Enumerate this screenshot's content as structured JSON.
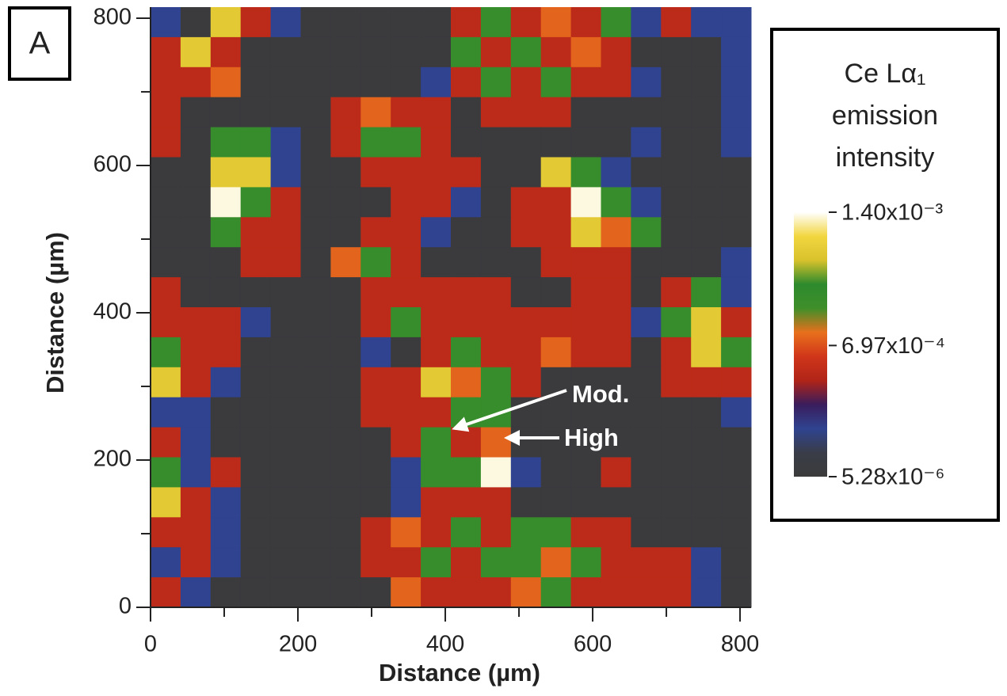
{
  "chart_data": {
    "type": "heatmap",
    "title": "A",
    "xlabel": "Distance (µm)",
    "ylabel": "Distance (µm)",
    "xlim": [
      0,
      815
    ],
    "ylim": [
      0,
      815
    ],
    "xticks": [
      0,
      200,
      400,
      600,
      800
    ],
    "yticks": [
      0,
      200,
      400,
      600,
      800
    ],
    "xminorticks": [
      100,
      300,
      500,
      700
    ],
    "yminorticks": [
      100,
      300,
      500,
      700
    ],
    "colorbar_title": [
      "Ce Lα₁",
      "emission",
      "intensity"
    ],
    "zlim": [
      5.28e-06,
      0.0014
    ],
    "zticks": [
      {
        "value": 0.0014,
        "label": "1.40x10⁻³"
      },
      {
        "value": 0.000697,
        "label": "6.97x10⁻⁴"
      },
      {
        "value": 5.28e-06,
        "label": "5.28x10⁻⁶"
      }
    ],
    "colors": [
      "#3b3b3b",
      "#3a3d48",
      "#2f4390",
      "#3a1d5c",
      "#b02418",
      "#d0361a",
      "#e8701c",
      "#3f8f2a",
      "#2d8a2d",
      "#d8c22c",
      "#f2d640",
      "#ffffff"
    ],
    "annotations": [
      "Mod.",
      "High"
    ],
    "z": [
      [
        0.00026,
        3e-05,
        0.0012,
        0.00056,
        0.00026,
        3e-05,
        3e-05,
        3e-05,
        3e-05,
        3e-05,
        0.00056,
        0.00095,
        0.00056,
        0.00074,
        0.00056,
        0.00095,
        0.00026,
        0.00056,
        0.00026,
        0.00026
      ],
      [
        0.00056,
        0.0012,
        0.00056,
        3e-05,
        3e-05,
        3e-05,
        3e-05,
        3e-05,
        3e-05,
        3e-05,
        0.00095,
        0.00056,
        0.00095,
        0.00056,
        0.00074,
        0.00056,
        3e-05,
        3e-05,
        3e-05,
        0.00026
      ],
      [
        0.00056,
        0.00056,
        0.00074,
        3e-05,
        3e-05,
        3e-05,
        3e-05,
        3e-05,
        3e-05,
        0.00026,
        0.00056,
        0.00095,
        0.00056,
        0.00095,
        0.00056,
        0.00056,
        0.00026,
        3e-05,
        3e-05,
        0.00026
      ],
      [
        0.00056,
        3e-05,
        3e-05,
        3e-05,
        3e-05,
        3e-05,
        0.00056,
        0.00074,
        0.00056,
        0.00056,
        3e-05,
        0.00056,
        0.00056,
        0.00056,
        3e-05,
        3e-05,
        3e-05,
        3e-05,
        3e-05,
        0.00026
      ],
      [
        0.00056,
        3e-05,
        0.00095,
        0.00095,
        0.00026,
        3e-05,
        0.00056,
        0.00095,
        0.00095,
        0.00056,
        3e-05,
        3e-05,
        3e-05,
        3e-05,
        3e-05,
        3e-05,
        0.00026,
        3e-05,
        3e-05,
        0.00026
      ],
      [
        3e-05,
        3e-05,
        0.0012,
        0.0012,
        0.00026,
        3e-05,
        3e-05,
        0.00056,
        0.00056,
        0.00056,
        0.00056,
        3e-05,
        3e-05,
        0.0012,
        0.00095,
        0.00026,
        3e-05,
        3e-05,
        3e-05,
        3e-05
      ],
      [
        3e-05,
        3e-05,
        0.00138,
        0.00095,
        0.00056,
        3e-05,
        3e-05,
        3e-05,
        0.00056,
        0.00056,
        0.00026,
        3e-05,
        0.00056,
        0.00056,
        0.00138,
        0.00095,
        0.00026,
        3e-05,
        3e-05,
        3e-05
      ],
      [
        3e-05,
        3e-05,
        0.00095,
        0.00056,
        0.00056,
        3e-05,
        3e-05,
        0.00056,
        0.00056,
        0.00026,
        3e-05,
        3e-05,
        0.00056,
        0.00056,
        0.0012,
        0.00074,
        0.00095,
        3e-05,
        3e-05,
        3e-05
      ],
      [
        3e-05,
        3e-05,
        3e-05,
        0.00056,
        0.00056,
        3e-05,
        0.00074,
        0.00095,
        0.00056,
        3e-05,
        3e-05,
        3e-05,
        3e-05,
        0.00056,
        0.00056,
        0.00056,
        3e-05,
        3e-05,
        3e-05,
        0.00026
      ],
      [
        0.00056,
        3e-05,
        3e-05,
        3e-05,
        3e-05,
        3e-05,
        3e-05,
        0.00056,
        0.00056,
        0.00056,
        0.00056,
        0.00056,
        3e-05,
        3e-05,
        0.00056,
        0.00056,
        3e-05,
        0.00056,
        0.00095,
        0.00026
      ],
      [
        0.00056,
        0.00056,
        0.00056,
        0.00026,
        3e-05,
        3e-05,
        3e-05,
        0.00056,
        0.00095,
        0.00056,
        0.00056,
        0.00056,
        0.00056,
        0.00056,
        0.00056,
        0.00056,
        0.00026,
        0.00095,
        0.0012,
        0.00056
      ],
      [
        0.00095,
        0.00056,
        0.00056,
        3e-05,
        3e-05,
        3e-05,
        3e-05,
        0.00026,
        3e-05,
        0.00056,
        0.00095,
        0.00056,
        0.00056,
        0.00074,
        0.00056,
        0.00056,
        3e-05,
        0.00056,
        0.0012,
        0.00095
      ],
      [
        0.0012,
        0.00056,
        0.00026,
        3e-05,
        3e-05,
        3e-05,
        3e-05,
        0.00056,
        0.00056,
        0.0012,
        0.00074,
        0.00095,
        0.00056,
        3e-05,
        3e-05,
        3e-05,
        3e-05,
        0.00056,
        0.00056,
        0.00056
      ],
      [
        0.00026,
        0.00026,
        3e-05,
        3e-05,
        3e-05,
        3e-05,
        3e-05,
        0.00056,
        0.00056,
        0.00056,
        0.00095,
        0.00095,
        3e-05,
        3e-05,
        3e-05,
        3e-05,
        3e-05,
        3e-05,
        3e-05,
        0.00026
      ],
      [
        0.00056,
        0.00026,
        3e-05,
        3e-05,
        3e-05,
        3e-05,
        3e-05,
        3e-05,
        0.00056,
        0.00095,
        0.00056,
        0.00074,
        3e-05,
        3e-05,
        3e-05,
        3e-05,
        3e-05,
        3e-05,
        3e-05,
        3e-05
      ],
      [
        0.00095,
        0.00026,
        0.00056,
        3e-05,
        3e-05,
        3e-05,
        3e-05,
        3e-05,
        0.00026,
        0.00095,
        0.00095,
        0.00138,
        0.00026,
        3e-05,
        3e-05,
        0.00056,
        3e-05,
        3e-05,
        3e-05,
        3e-05
      ],
      [
        0.0012,
        0.00056,
        0.00026,
        3e-05,
        3e-05,
        3e-05,
        3e-05,
        3e-05,
        0.00026,
        0.00056,
        0.00056,
        0.00056,
        3e-05,
        3e-05,
        3e-05,
        3e-05,
        3e-05,
        3e-05,
        3e-05,
        3e-05
      ],
      [
        0.00056,
        0.00056,
        0.00026,
        3e-05,
        3e-05,
        3e-05,
        3e-05,
        0.00056,
        0.00074,
        0.00056,
        0.00095,
        0.00056,
        0.00095,
        0.00095,
        0.00056,
        0.00056,
        3e-05,
        3e-05,
        3e-05,
        3e-05
      ],
      [
        0.00026,
        0.00056,
        0.00026,
        3e-05,
        3e-05,
        3e-05,
        3e-05,
        0.00056,
        0.00056,
        0.00095,
        0.00056,
        0.00095,
        0.00095,
        0.00074,
        0.00095,
        0.00056,
        0.00056,
        0.00056,
        0.00026,
        3e-05
      ],
      [
        0.00056,
        0.00026,
        3e-05,
        3e-05,
        3e-05,
        3e-05,
        3e-05,
        3e-05,
        0.00074,
        0.00056,
        0.00056,
        0.00056,
        0.00074,
        0.00095,
        0.00056,
        0.00056,
        0.00056,
        0.00056,
        0.00026,
        3e-05
      ]
    ]
  }
}
